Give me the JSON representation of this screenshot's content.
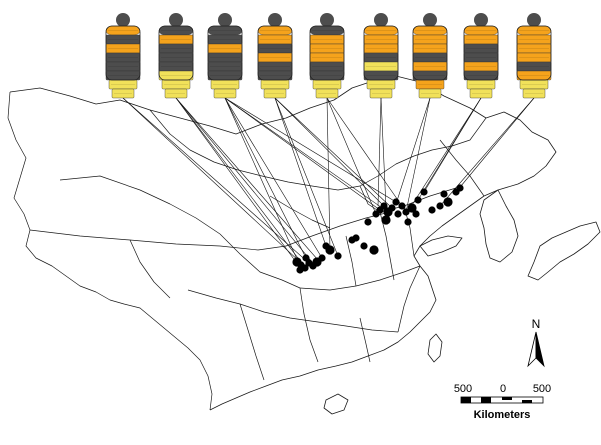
{
  "colors": {
    "background": "#ffffff",
    "black_band": "#4d4d4d",
    "orange_band": "#f5a31c",
    "yellow_band": "#f1e15a",
    "outline": "#1a1a1a",
    "locality_dot": "#000000"
  },
  "patterns": [
    {
      "bands": [
        "orange",
        "black",
        "orange",
        "black",
        "black",
        "black",
        "yellow",
        "yellow"
      ]
    },
    {
      "bands": [
        "black",
        "orange",
        "black",
        "black",
        "black",
        "yellow",
        "yellow",
        "yellow"
      ]
    },
    {
      "bands": [
        "black",
        "black",
        "orange",
        "black",
        "black",
        "black",
        "yellow",
        "yellow"
      ]
    },
    {
      "bands": [
        "orange",
        "orange",
        "black",
        "orange",
        "black",
        "black",
        "yellow",
        "yellow"
      ]
    },
    {
      "bands": [
        "black",
        "orange",
        "orange",
        "orange",
        "black",
        "black",
        "yellow",
        "yellow"
      ]
    },
    {
      "bands": [
        "orange",
        "orange",
        "orange",
        "black",
        "yellow",
        "black",
        "yellow",
        "yellow"
      ]
    },
    {
      "bands": [
        "orange",
        "orange",
        "orange",
        "black",
        "orange",
        "black",
        "orange",
        "yellow"
      ]
    },
    {
      "bands": [
        "orange",
        "orange",
        "black",
        "black",
        "orange",
        "black",
        "yellow",
        "yellow"
      ]
    },
    {
      "bands": [
        "orange",
        "orange",
        "orange",
        "orange",
        "black",
        "orange",
        "yellow",
        "yellow"
      ]
    }
  ],
  "scale_bar": {
    "labels": [
      "500",
      "0",
      "500"
    ],
    "unit": "Kilometers"
  },
  "north_arrow": {
    "label": "N"
  }
}
